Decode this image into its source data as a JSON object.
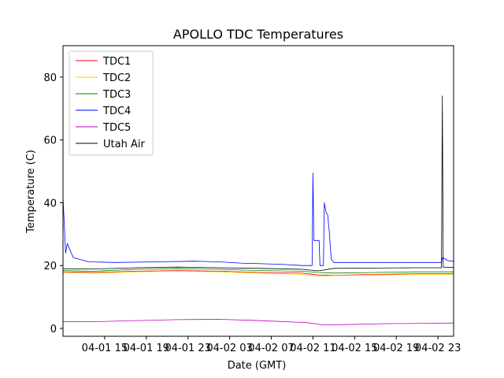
{
  "chart_data": {
    "type": "line",
    "title": "APOLLO TDC Temperatures",
    "xlabel": "Date (GMT)",
    "ylabel": "Temperature (C)",
    "x_unit": "hours",
    "x_range": [
      "04-01 11:00",
      "04-03 00:30"
    ],
    "x_ticks": [
      {
        "label": "04-01 15",
        "t": "04-01 15:00"
      },
      {
        "label": "04-01 19",
        "t": "04-01 19:00"
      },
      {
        "label": "04-01 23",
        "t": "04-01 23:00"
      },
      {
        "label": "04-02 03",
        "t": "04-02 03:00"
      },
      {
        "label": "04-02 07",
        "t": "04-02 07:00"
      },
      {
        "label": "04-02 11",
        "t": "04-02 11:00"
      },
      {
        "label": "04-02 15",
        "t": "04-02 15:00"
      },
      {
        "label": "04-02 19",
        "t": "04-02 19:00"
      },
      {
        "label": "04-02 23",
        "t": "04-02 23:00"
      }
    ],
    "ylim": [
      -2.5,
      90
    ],
    "y_ticks": [
      0,
      20,
      40,
      60,
      80
    ],
    "grid": false,
    "legend_position": "upper-left",
    "series": [
      {
        "name": "TDC1",
        "color": "#ff0000",
        "points": [
          [
            "04-01 11:00",
            18.0
          ],
          [
            "04-01 14:00",
            17.8
          ],
          [
            "04-01 18:00",
            18.2
          ],
          [
            "04-01 22:00",
            18.4
          ],
          [
            "04-02 02:00",
            18.2
          ],
          [
            "04-02 06:00",
            17.8
          ],
          [
            "04-02 10:00",
            17.6
          ],
          [
            "04-02 11:30",
            17.0
          ],
          [
            "04-02 13:00",
            16.9
          ],
          [
            "04-02 17:00",
            17.2
          ],
          [
            "04-02 21:00",
            17.4
          ],
          [
            "04-03 00:30",
            17.4
          ]
        ]
      },
      {
        "name": "TDC2",
        "color": "#ffcc00",
        "points": [
          [
            "04-01 11:00",
            17.8
          ],
          [
            "04-01 14:00",
            17.6
          ],
          [
            "04-01 18:00",
            18.0
          ],
          [
            "04-01 22:00",
            18.2
          ],
          [
            "04-02 02:00",
            18.0
          ],
          [
            "04-02 06:00",
            17.6
          ],
          [
            "04-02 10:00",
            17.2
          ],
          [
            "04-02 11:30",
            16.6
          ],
          [
            "04-02 13:00",
            16.8
          ],
          [
            "04-02 17:00",
            17.0
          ],
          [
            "04-02 21:00",
            17.2
          ],
          [
            "04-03 00:30",
            17.2
          ]
        ]
      },
      {
        "name": "TDC3",
        "color": "#008000",
        "points": [
          [
            "04-01 11:00",
            18.4
          ],
          [
            "04-01 14:00",
            18.2
          ],
          [
            "04-01 18:00",
            18.8
          ],
          [
            "04-01 22:00",
            19.0
          ],
          [
            "04-02 02:00",
            18.8
          ],
          [
            "04-02 06:00",
            18.4
          ],
          [
            "04-02 10:00",
            18.2
          ],
          [
            "04-02 11:30",
            17.8
          ],
          [
            "04-02 13:00",
            17.6
          ],
          [
            "04-02 17:00",
            17.8
          ],
          [
            "04-02 21:00",
            18.0
          ],
          [
            "04-03 00:30",
            18.0
          ]
        ]
      },
      {
        "name": "TDC4",
        "color": "#0000ff",
        "points": [
          [
            "04-01 11:00",
            42
          ],
          [
            "04-01 11:15",
            24
          ],
          [
            "04-01 11:25",
            27
          ],
          [
            "04-01 11:40",
            25
          ],
          [
            "04-01 12:00",
            22.5
          ],
          [
            "04-01 13:30",
            21.2
          ],
          [
            "04-01 16:00",
            21.0
          ],
          [
            "04-01 20:00",
            21.2
          ],
          [
            "04-01 23:30",
            21.4
          ],
          [
            "04-02 02:00",
            21.2
          ],
          [
            "04-02 04:00",
            20.8
          ],
          [
            "04-02 08:00",
            20.4
          ],
          [
            "04-02 10:00",
            20.0
          ],
          [
            "04-02 10:55",
            20.0
          ],
          [
            "04-02 11:00",
            49.5
          ],
          [
            "04-02 11:05",
            28
          ],
          [
            "04-02 11:35",
            28
          ],
          [
            "04-02 11:40",
            20.0
          ],
          [
            "04-02 12:00",
            20.0
          ],
          [
            "04-02 12:05",
            40
          ],
          [
            "04-02 12:15",
            37
          ],
          [
            "04-02 12:25",
            36
          ],
          [
            "04-02 12:35",
            30
          ],
          [
            "04-02 12:45",
            22
          ],
          [
            "04-02 13:00",
            21.0
          ],
          [
            "04-02 16:00",
            21.0
          ],
          [
            "04-02 20:00",
            21.0
          ],
          [
            "04-02 23:20",
            21.0
          ],
          [
            "04-02 23:25",
            22.5
          ],
          [
            "04-02 23:40",
            22.2
          ],
          [
            "04-02 23:55",
            21.6
          ],
          [
            "04-03 00:30",
            21.4
          ]
        ]
      },
      {
        "name": "TDC5",
        "color": "#c000c0",
        "points": [
          [
            "04-01 11:00",
            2.2
          ],
          [
            "04-01 14:00",
            2.1
          ],
          [
            "04-01 18:00",
            2.5
          ],
          [
            "04-01 22:00",
            2.8
          ],
          [
            "04-02 02:00",
            2.9
          ],
          [
            "04-02 05:00",
            2.6
          ],
          [
            "04-02 08:00",
            2.2
          ],
          [
            "04-02 10:30",
            1.8
          ],
          [
            "04-02 12:00",
            1.1
          ],
          [
            "04-02 14:00",
            1.2
          ],
          [
            "04-02 18:00",
            1.5
          ],
          [
            "04-02 22:00",
            1.6
          ],
          [
            "04-03 00:30",
            1.7
          ]
        ]
      },
      {
        "name": "Utah Air",
        "color": "#000000",
        "points": [
          [
            "04-01 11:00",
            19.0
          ],
          [
            "04-01 14:00",
            18.9
          ],
          [
            "04-01 18:00",
            19.3
          ],
          [
            "04-01 22:00",
            19.5
          ],
          [
            "04-02 02:00",
            19.3
          ],
          [
            "04-02 06:00",
            19.1
          ],
          [
            "04-02 10:00",
            18.8
          ],
          [
            "04-02 11:30",
            18.3
          ],
          [
            "04-02 13:00",
            19.1
          ],
          [
            "04-02 17:00",
            19.2
          ],
          [
            "04-02 21:00",
            19.3
          ],
          [
            "04-02 23:20",
            19.3
          ],
          [
            "04-02 23:25",
            74
          ],
          [
            "04-02 23:30",
            19.5
          ],
          [
            "04-03 00:30",
            19.4
          ]
        ]
      }
    ]
  }
}
